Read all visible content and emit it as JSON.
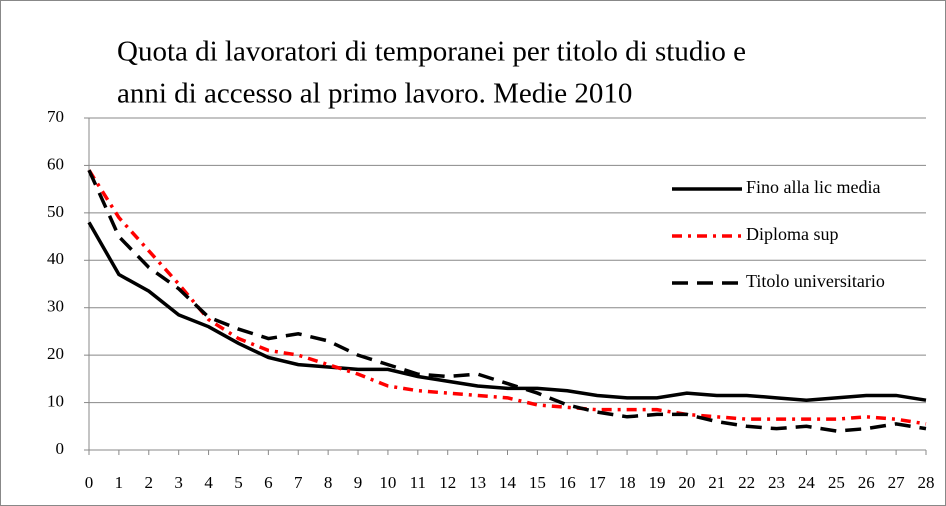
{
  "chart_data": {
    "type": "line",
    "title": [
      "Quota di lavoratori di temporanei per titolo di studio e",
      "anni di accesso al primo lavoro.  Medie 2010"
    ],
    "x": [
      0,
      1,
      2,
      3,
      4,
      5,
      6,
      7,
      8,
      9,
      10,
      11,
      12,
      13,
      14,
      15,
      16,
      17,
      18,
      19,
      20,
      21,
      22,
      23,
      24,
      25,
      26,
      27,
      28
    ],
    "xlim": [
      0,
      28
    ],
    "xticks": [
      0,
      1,
      2,
      3,
      4,
      5,
      6,
      7,
      8,
      9,
      10,
      11,
      12,
      13,
      14,
      15,
      16,
      17,
      18,
      19,
      20,
      21,
      22,
      23,
      24,
      25,
      26,
      27,
      28
    ],
    "ylim": [
      0,
      70
    ],
    "yticks": [
      0,
      10,
      20,
      30,
      40,
      50,
      60,
      70
    ],
    "grid": true,
    "legend": "right",
    "series": [
      {
        "name": "Fino alla lic media",
        "color": "#000000",
        "dash": "solid",
        "values": [
          48,
          37,
          33.5,
          28.5,
          26,
          22.5,
          19.5,
          18,
          17.5,
          17,
          17,
          15.5,
          14.5,
          13.5,
          13,
          13,
          12.5,
          11.5,
          11,
          11,
          12,
          11.5,
          11.5,
          11,
          10.5,
          11,
          11.5,
          11.5,
          10.5
        ]
      },
      {
        "name": "Diploma sup",
        "color": "#ff0000",
        "dash": "dashdot",
        "values": [
          59,
          49,
          42,
          35,
          27.5,
          23.5,
          21,
          20,
          18,
          16,
          13.5,
          12.5,
          12,
          11.5,
          11,
          9.5,
          9,
          8.5,
          8.5,
          8.5,
          7.5,
          7,
          6.5,
          6.5,
          6.5,
          6.5,
          7,
          6.5,
          5.5
        ]
      },
      {
        "name": "Titolo universitario",
        "color": "#000000",
        "dash": "dashed",
        "values": [
          59,
          45,
          38.5,
          34,
          28,
          25.5,
          23.5,
          24.5,
          23,
          20,
          18,
          16,
          15.5,
          16,
          14,
          12,
          9.5,
          8,
          7,
          7.5,
          7.5,
          6,
          5,
          4.5,
          5,
          4,
          4.5,
          5.5,
          4.5
        ]
      }
    ]
  }
}
